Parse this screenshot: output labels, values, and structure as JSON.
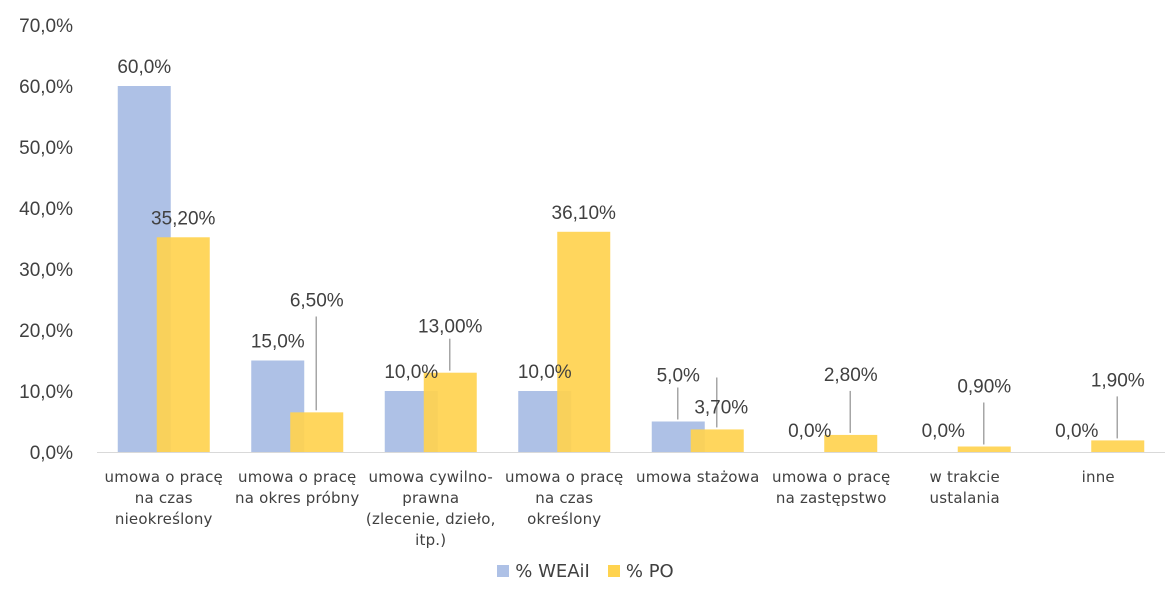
{
  "chart_data": {
    "type": "bar",
    "categories": [
      [
        "umowa o pracę",
        "na czas",
        "nieokreślony"
      ],
      [
        "umowa o pracę",
        "na okres próbny"
      ],
      [
        "umowa cywilno-",
        "prawna",
        "(zlecenie, dzieło,",
        "itp.)"
      ],
      [
        "umowa o pracę",
        "na czas",
        "określony"
      ],
      [
        "umowa stażowa"
      ],
      [
        "umowa o pracę",
        "na zastępstwo"
      ],
      [
        "w trakcie",
        "ustalania"
      ],
      [
        "inne"
      ]
    ],
    "series": [
      {
        "name": "% WEAiI",
        "color": "#aec1e6",
        "values": [
          60.0,
          15.0,
          10.0,
          10.0,
          5.0,
          0.0,
          0.0,
          0.0
        ],
        "labels": [
          "60,0%",
          "15,0%",
          "10,0%",
          "10,0%",
          "5,0%",
          "0,0%",
          "0,0%",
          "0,0%"
        ]
      },
      {
        "name": "% PO",
        "color": "#ffd34f",
        "values": [
          35.2,
          6.5,
          13.0,
          36.1,
          3.7,
          2.8,
          0.9,
          1.9
        ],
        "labels": [
          "35,20%",
          "6,50%",
          "13,00%",
          "36,10%",
          "3,70%",
          "2,80%",
          "0,90%",
          "1,90%"
        ]
      }
    ],
    "ylim": [
      0,
      70
    ],
    "yticks": [
      0,
      10,
      20,
      30,
      40,
      50,
      60,
      70
    ],
    "ytick_labels": [
      "0,0%",
      "10,0%",
      "20,0%",
      "30,0%",
      "40,0%",
      "50,0%",
      "60,0%",
      "70,0%"
    ],
    "legend_position": "bottom",
    "grid": false
  }
}
